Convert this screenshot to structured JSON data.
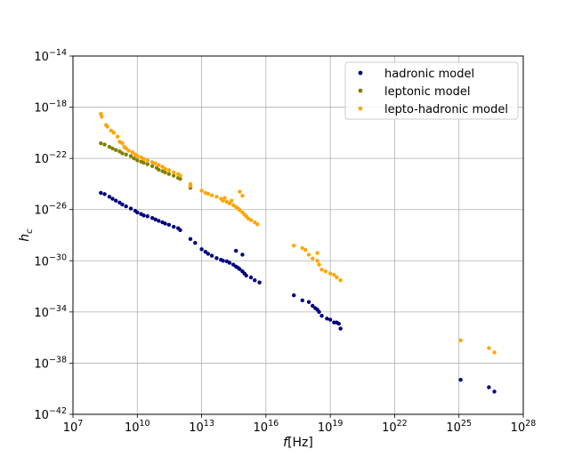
{
  "chart_data": {
    "type": "scatter",
    "title": "",
    "xlabel": "f[Hz]",
    "ylabel": "h_c",
    "x_scale": "log",
    "y_scale": "log",
    "xlim": [
      10000000.0,
      1e+28
    ],
    "ylim": [
      1e-42,
      1e-14
    ],
    "x_ticks": [
      7,
      10,
      13,
      16,
      19,
      22,
      25,
      28
    ],
    "y_ticks": [
      -42,
      -38,
      -34,
      -30,
      -26,
      -22,
      -18,
      -14
    ],
    "grid": true,
    "legend": "top-right",
    "series": [
      {
        "name": "hadronic model",
        "color": "#000080",
        "points": [
          [
            200000000.0,
            2e-25
          ],
          [
            300000000.0,
            1.6e-25
          ],
          [
            500000000.0,
            1e-25
          ],
          [
            700000000.0,
            7e-26
          ],
          [
            1000000000.0,
            5e-26
          ],
          [
            1500000000.0,
            3.5e-26
          ],
          [
            2000000000.0,
            2.5e-26
          ],
          [
            3000000000.0,
            1.8e-26
          ],
          [
            5000000000.0,
            1.2e-26
          ],
          [
            8000000000.0,
            8e-27
          ],
          [
            10000000000.0,
            6e-27
          ],
          [
            15000000000.0,
            4.5e-27
          ],
          [
            20000000000.0,
            3.5e-27
          ],
          [
            30000000000.0,
            3e-27
          ],
          [
            50000000000.0,
            2.2e-27
          ],
          [
            70000000000.0,
            1.7e-27
          ],
          [
            100000000000.0,
            1.3e-27
          ],
          [
            150000000000.0,
            1e-27
          ],
          [
            200000000000.0,
            8e-28
          ],
          [
            300000000000.0,
            6.5e-28
          ],
          [
            500000000000.0,
            4.5e-28
          ],
          [
            800000000000.0,
            3.5e-28
          ],
          [
            1000000000000.0,
            2.5e-28
          ],
          [
            3000000000000.0,
            5e-29
          ],
          [
            5000000000000.0,
            2.5e-29
          ],
          [
            10000000000000.0,
            8e-30
          ],
          [
            15000000000000.0,
            5e-30
          ],
          [
            20000000000000.0,
            3.5e-30
          ],
          [
            30000000000000.0,
            2.5e-30
          ],
          [
            50000000000000.0,
            1.6e-30
          ],
          [
            80000000000000.0,
            1.2e-30
          ],
          [
            100000000000000.0,
            1e-30
          ],
          [
            150000000000000.0,
            9e-31
          ],
          [
            200000000000000.0,
            7e-31
          ],
          [
            300000000000000.0,
            5e-31
          ],
          [
            400000000000000.0,
            3.5e-31
          ],
          [
            500000000000000.0,
            2.8e-31
          ],
          [
            600000000000000.0,
            2.2e-31
          ],
          [
            800000000000000.0,
            1.5e-31
          ],
          [
            1000000000000000.0,
            1e-31
          ],
          [
            1200000000000000.0,
            7e-32
          ],
          [
            2000000000000000.0,
            5e-32
          ],
          [
            3000000000000000.0,
            3e-32
          ],
          [
            5000000000000000.0,
            2e-32
          ],
          [
            400000000000000.0,
            6e-30
          ],
          [
            800000000000000.0,
            3e-30
          ],
          [
            2e+17,
            2e-33
          ],
          [
            5e+17,
            8e-34
          ],
          [
            1e+18,
            6e-34
          ],
          [
            1.5e+18,
            3e-34
          ],
          [
            2e+18,
            2e-34
          ],
          [
            2.5e+18,
            1.5e-34
          ],
          [
            3e+18,
            1e-34
          ],
          [
            4e+18,
            5e-35
          ],
          [
            7e+18,
            3e-35
          ],
          [
            1e+19,
            2.5e-35
          ],
          [
            1.5e+19,
            1.5e-35
          ],
          [
            2e+19,
            1.5e-35
          ],
          [
            2.5e+19,
            1.2e-35
          ],
          [
            3e+19,
            5e-36
          ],
          [
            1.2e+25,
            5e-40
          ],
          [
            2.5e+26,
            1.3e-40
          ],
          [
            4.5e+26,
            6e-41
          ]
        ]
      },
      {
        "name": "leptonic model",
        "color": "#808000",
        "points": [
          [
            200000000.0,
            1.5e-21
          ],
          [
            300000000.0,
            1.2e-21
          ],
          [
            500000000.0,
            8e-22
          ],
          [
            700000000.0,
            6e-22
          ],
          [
            1000000000.0,
            4.5e-22
          ],
          [
            1500000000.0,
            3.5e-22
          ],
          [
            2000000000.0,
            2.5e-22
          ],
          [
            3000000000.0,
            2e-22
          ],
          [
            5000000000.0,
            1.5e-22
          ],
          [
            7000000000.0,
            1e-22
          ],
          [
            10000000000.0,
            7e-23
          ],
          [
            15000000000.0,
            5.5e-23
          ],
          [
            20000000000.0,
            4.5e-23
          ],
          [
            30000000000.0,
            3.5e-23
          ],
          [
            50000000000.0,
            2.5e-23
          ],
          [
            80000000000.0,
            1.8e-23
          ],
          [
            100000000000.0,
            1.3e-23
          ],
          [
            150000000000.0,
            1e-23
          ],
          [
            200000000000.0,
            8e-24
          ],
          [
            300000000000.0,
            6e-24
          ],
          [
            500000000000.0,
            4.5e-24
          ],
          [
            800000000000.0,
            3e-24
          ],
          [
            1000000000000.0,
            2.5e-24
          ],
          [
            3000000000000.0,
            7e-25
          ],
          [
            3000000000000.0,
            5e-25
          ]
        ]
      },
      {
        "name": "lepto-hadronic model",
        "color": "#FFA500",
        "points": [
          [
            200000000.0,
            3e-19
          ],
          [
            220000000.0,
            1.8e-19
          ],
          [
            350000000.0,
            4e-20
          ],
          [
            400000000.0,
            3e-20
          ],
          [
            600000000.0,
            1.5e-20
          ],
          [
            800000000.0,
            1e-20
          ],
          [
            1200000000.0,
            5e-21
          ],
          [
            1500000000.0,
            2e-21
          ],
          [
            2000000000.0,
            1.5e-21
          ],
          [
            2500000000.0,
            8e-22
          ],
          [
            3000000000.0,
            6e-22
          ],
          [
            4000000000.0,
            4e-22
          ],
          [
            6000000000.0,
            3e-22
          ],
          [
            8000000000.0,
            2e-22
          ],
          [
            10000000000.0,
            1.5e-22
          ],
          [
            15000000000.0,
            1.2e-22
          ],
          [
            20000000000.0,
            9e-23
          ],
          [
            30000000000.0,
            7e-23
          ],
          [
            50000000000.0,
            5e-23
          ],
          [
            70000000000.0,
            4e-23
          ],
          [
            100000000000.0,
            3e-23
          ],
          [
            150000000000.0,
            2.2e-23
          ],
          [
            200000000000.0,
            1.5e-23
          ],
          [
            300000000000.0,
            1.2e-23
          ],
          [
            500000000000.0,
            8e-24
          ],
          [
            800000000000.0,
            6e-24
          ],
          [
            1000000000000.0,
            4.5e-24
          ],
          [
            3000000000000.0,
            1e-24
          ],
          [
            3000000000000.0,
            7e-25
          ],
          [
            10000000000000.0,
            3e-25
          ],
          [
            15000000000000.0,
            2e-25
          ],
          [
            20000000000000.0,
            1.7e-25
          ],
          [
            30000000000000.0,
            1.3e-25
          ],
          [
            50000000000000.0,
            1e-25
          ],
          [
            80000000000000.0,
            7e-26
          ],
          [
            100000000000000.0,
            5e-26
          ],
          [
            120000000000000.0,
            8e-26
          ],
          [
            150000000000000.0,
            4e-26
          ],
          [
            200000000000000.0,
            3e-26
          ],
          [
            250000000000000.0,
            5e-26
          ],
          [
            300000000000000.0,
            2.2e-26
          ],
          [
            400000000000000.0,
            1.6e-26
          ],
          [
            500000000000000.0,
            1.2e-26
          ],
          [
            600000000000000.0,
            9e-27
          ],
          [
            800000000000000.0,
            6e-27
          ],
          [
            1000000000000000.0,
            4e-27
          ],
          [
            1200000000000000.0,
            3e-27
          ],
          [
            1500000000000000.0,
            2e-27
          ],
          [
            2000000000000000.0,
            1.5e-27
          ],
          [
            3000000000000000.0,
            1e-27
          ],
          [
            4000000000000000.0,
            7e-28
          ],
          [
            600000000000000.0,
            2.5e-25
          ],
          [
            800000000000000.0,
            1.2e-25
          ],
          [
            2e+17,
            1.5e-29
          ],
          [
            5e+17,
            1e-29
          ],
          [
            7e+17,
            7e-30
          ],
          [
            1e+18,
            3e-30
          ],
          [
            1.5e+18,
            1.5e-30
          ],
          [
            2.5e+18,
            1e-30
          ],
          [
            2.5e+18,
            4e-30
          ],
          [
            3e+18,
            5e-31
          ],
          [
            4e+18,
            2e-31
          ],
          [
            6e+18,
            1.5e-31
          ],
          [
            1e+19,
            1e-31
          ],
          [
            1.5e+19,
            8e-32
          ],
          [
            2e+19,
            5e-32
          ],
          [
            3e+19,
            3e-32
          ],
          [
            1.2e+25,
            6e-37
          ],
          [
            2.5e+26,
            1.5e-37
          ],
          [
            4.5e+26,
            7e-38
          ]
        ]
      }
    ]
  }
}
